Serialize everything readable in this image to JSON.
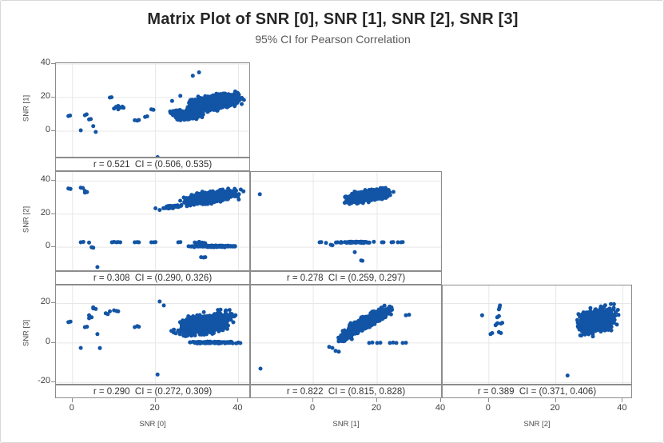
{
  "title": "Matrix Plot of SNR [0], SNR [1], SNR [2], SNR [3]",
  "subtitle": "95% CI for Pearson Correlation",
  "colors": {
    "dot": "#1254a5",
    "grid": "#e7e7e7",
    "panel_border": "#8c8c8c",
    "tick_text": "#404040",
    "axis_title_text": "#4d4d4d",
    "corr_text": "#333333",
    "title_text": "#262626",
    "subtitle_text": "#595959",
    "canvas_border": "#d8d8d8"
  },
  "chart_data": {
    "type": "scatter",
    "subtype": "lower-triangular scatterplot matrix with Pearson correlation strips",
    "variables": [
      "SNR [0]",
      "SNR [1]",
      "SNR [2]",
      "SNR [3]"
    ],
    "grid": true,
    "x_axes": [
      {
        "label": "SNR [0]",
        "ticks": [
          0,
          20,
          40
        ]
      },
      {
        "label": "SNR [1]",
        "ticks": [
          0,
          20,
          40
        ]
      },
      {
        "label": "SNR [2]",
        "ticks": [
          0,
          20,
          40
        ]
      }
    ],
    "y_axes": [
      {
        "label": "SNR [1]",
        "ticks": [
          0,
          20,
          40
        ]
      },
      {
        "label": "SNR [2]",
        "ticks": [
          0,
          20,
          40
        ]
      },
      {
        "label": "SNR [3]",
        "ticks": [
          -20,
          0,
          20
        ]
      }
    ],
    "panels": [
      {
        "row": 0,
        "col": 0,
        "x_var": "SNR [0]",
        "y_var": "SNR [1]",
        "r": 0.521,
        "ci": "(0.506, 0.535)",
        "corr_label": "r = 0.521  CI = (0.506, 0.535)",
        "xlim": [
          -4,
          43
        ],
        "ylim": [
          -16.2,
          40.5
        ],
        "clusters": [
          {
            "cx": 34,
            "cy": 17,
            "rx": 8.5,
            "ry": 7,
            "rho": 0.5,
            "n": 750
          },
          {
            "cx": 28,
            "cy": 9,
            "rx": 4.5,
            "ry": 3.5,
            "rho": 0.3,
            "n": 160
          },
          {
            "cx": 25,
            "cy": 11,
            "rx": 2.5,
            "ry": 2.5,
            "rho": 0.2,
            "n": 60
          }
        ],
        "points": [
          [
            -1,
            9
          ],
          [
            -0.6,
            9.3
          ],
          [
            2,
            0.5
          ],
          [
            3,
            9.5
          ],
          [
            3.4,
            10
          ],
          [
            4,
            7
          ],
          [
            4.4,
            7.2
          ],
          [
            5,
            3
          ],
          [
            5.6,
            -0.5
          ],
          [
            9,
            20
          ],
          [
            9.4,
            20.2
          ],
          [
            10,
            13.5
          ],
          [
            10.5,
            14.5
          ],
          [
            11,
            15
          ],
          [
            11,
            13
          ],
          [
            11.6,
            14
          ],
          [
            12,
            14.6
          ],
          [
            12.3,
            13.9
          ],
          [
            15,
            6.5
          ],
          [
            15.6,
            6.3
          ],
          [
            16,
            6.6
          ],
          [
            17.5,
            8.5
          ],
          [
            18,
            8.8
          ],
          [
            19,
            13
          ],
          [
            19.5,
            12.7
          ],
          [
            20.5,
            -15.5
          ],
          [
            29,
            33
          ],
          [
            30.5,
            35
          ],
          [
            26,
            21
          ],
          [
            24,
            18
          ]
        ]
      },
      {
        "row": 1,
        "col": 0,
        "x_var": "SNR [0]",
        "y_var": "SNR [2]",
        "r": 0.308,
        "ci": "(0.290, 0.326)",
        "corr_label": "r = 0.308  CI = (0.290, 0.326)",
        "xlim": [
          -4,
          43
        ],
        "ylim": [
          -14.9,
          45.5
        ],
        "clusters": [
          {
            "cx": 33,
            "cy": 30,
            "rx": 8.5,
            "ry": 5.5,
            "rho": 0.55,
            "n": 750
          },
          {
            "cx": 24,
            "cy": 24.5,
            "rx": 2.5,
            "ry": 1.5,
            "rho": 0.4,
            "n": 60
          },
          {
            "cx": 34,
            "cy": 0.6,
            "rx": 7.5,
            "ry": 0.7,
            "rho": 0,
            "n": 130
          },
          {
            "cx": 31,
            "cy": 2.2,
            "rx": 2,
            "ry": 1.4,
            "rho": 0,
            "n": 40
          }
        ],
        "points": [
          [
            -1,
            35.5
          ],
          [
            -0.5,
            35.2
          ],
          [
            2,
            36
          ],
          [
            2.5,
            35.8
          ],
          [
            3,
            34
          ],
          [
            3,
            33
          ],
          [
            3.5,
            33.3
          ],
          [
            20,
            23.5
          ],
          [
            21,
            22.5
          ],
          [
            2,
            3
          ],
          [
            2.6,
            3.2
          ],
          [
            4,
            2.8
          ],
          [
            4.6,
            0
          ],
          [
            5,
            -0.3
          ],
          [
            9.5,
            3
          ],
          [
            10,
            3.2
          ],
          [
            10.6,
            3
          ],
          [
            11,
            3.1
          ],
          [
            11.5,
            3
          ],
          [
            15,
            3
          ],
          [
            15.6,
            3.1
          ],
          [
            16,
            3
          ],
          [
            19,
            3
          ],
          [
            19.6,
            3
          ],
          [
            20,
            3.1
          ],
          [
            25.5,
            3
          ],
          [
            26,
            3.1
          ],
          [
            6,
            -12
          ],
          [
            31,
            -6
          ],
          [
            31.6,
            -6.2
          ],
          [
            32,
            -6
          ]
        ]
      },
      {
        "row": 1,
        "col": 1,
        "x_var": "SNR [1]",
        "y_var": "SNR [2]",
        "r": 0.278,
        "ci": "(0.259, 0.297)",
        "corr_label": "r = 0.278  CI = (0.259, 0.297)",
        "xlim": [
          -19.5,
          40.5
        ],
        "ylim": [
          -14.9,
          45.5
        ],
        "clusters": [
          {
            "cx": 17,
            "cy": 31,
            "rx": 8.5,
            "ry": 5,
            "rho": 0.55,
            "n": 800
          },
          {
            "cx": 13,
            "cy": 3,
            "rx": 7,
            "ry": 0.6,
            "rho": 0,
            "n": 60
          }
        ],
        "points": [
          [
            -16.7,
            32
          ],
          [
            5.5,
            1.5
          ],
          [
            6,
            1.2
          ],
          [
            13,
            -3
          ],
          [
            15,
            -8
          ],
          [
            15.4,
            -8.2
          ],
          [
            21.5,
            3
          ],
          [
            22,
            3
          ],
          [
            24.5,
            3
          ],
          [
            25,
            3.1
          ],
          [
            26.5,
            3
          ],
          [
            27.5,
            3
          ],
          [
            28,
            3.1
          ],
          [
            2,
            3
          ],
          [
            2.5,
            3.1
          ],
          [
            4,
            2.6
          ]
        ]
      },
      {
        "row": 2,
        "col": 0,
        "x_var": "SNR [0]",
        "y_var": "SNR [3]",
        "r": 0.29,
        "ci": "(0.272, 0.309)",
        "corr_label": "r = 0.290  CI = (0.272, 0.309)",
        "xlim": [
          -4,
          43
        ],
        "ylim": [
          -21.5,
          29.1
        ],
        "clusters": [
          {
            "cx": 32,
            "cy": 10,
            "rx": 8.5,
            "ry": 7.5,
            "rho": 0.45,
            "n": 800
          },
          {
            "cx": 34,
            "cy": 0.2,
            "rx": 7.5,
            "ry": 0.6,
            "rho": 0,
            "n": 110
          }
        ],
        "points": [
          [
            -1,
            10.5
          ],
          [
            -0.5,
            10.8
          ],
          [
            2,
            -2.5
          ],
          [
            3,
            8
          ],
          [
            3.5,
            8.2
          ],
          [
            4,
            12.5
          ],
          [
            4,
            14
          ],
          [
            4.6,
            13
          ],
          [
            5,
            17.5
          ],
          [
            5,
            18
          ],
          [
            5.6,
            17.2
          ],
          [
            6,
            4.5
          ],
          [
            6.6,
            -2.6
          ],
          [
            8,
            15
          ],
          [
            8.5,
            14.6
          ],
          [
            9,
            16
          ],
          [
            10,
            16.5
          ],
          [
            10.6,
            16.2
          ],
          [
            11,
            16
          ],
          [
            15,
            8
          ],
          [
            15.6,
            8.5
          ],
          [
            16,
            8.2
          ],
          [
            20.5,
            -16
          ],
          [
            21,
            21
          ],
          [
            22,
            19
          ]
        ]
      },
      {
        "row": 2,
        "col": 1,
        "x_var": "SNR [1]",
        "y_var": "SNR [3]",
        "r": 0.822,
        "ci": "(0.815, 0.828)",
        "corr_label": "r = 0.822  CI = (0.815, 0.828)",
        "xlim": [
          -19.5,
          40.5
        ],
        "ylim": [
          -21.5,
          29.1
        ],
        "clusters": [
          {
            "cx": 17,
            "cy": 11,
            "rx": 8.5,
            "ry": 8,
            "rho": 0.85,
            "n": 900
          },
          {
            "cx": 10,
            "cy": 3,
            "rx": 3,
            "ry": 3,
            "rho": 0.5,
            "n": 80
          }
        ],
        "points": [
          [
            -16.5,
            -13
          ],
          [
            17.5,
            0
          ],
          [
            18.5,
            0.2
          ],
          [
            20,
            0
          ],
          [
            21,
            0.1
          ],
          [
            24,
            0
          ],
          [
            25,
            0.2
          ],
          [
            26,
            0
          ],
          [
            28,
            0
          ],
          [
            29,
            0.1
          ],
          [
            29,
            14
          ],
          [
            30,
            14.3
          ],
          [
            7,
            -4
          ],
          [
            8,
            -4.4
          ],
          [
            5,
            -2
          ],
          [
            6,
            -2.5
          ]
        ]
      },
      {
        "row": 2,
        "col": 2,
        "x_var": "SNR [2]",
        "y_var": "SNR [3]",
        "r": 0.389,
        "ci": "(0.371, 0.406)",
        "corr_label": "r = 0.389  CI = (0.371, 0.406)",
        "xlim": [
          -13.8,
          43
        ],
        "ylim": [
          -21.5,
          29.1
        ],
        "clusters": [
          {
            "cx": 32,
            "cy": 11,
            "rx": 7,
            "ry": 8.5,
            "rho": 0.35,
            "n": 900
          }
        ],
        "points": [
          [
            -2,
            14
          ],
          [
            0.5,
            4.5
          ],
          [
            1,
            5
          ],
          [
            2,
            9
          ],
          [
            2.3,
            9.6
          ],
          [
            2.6,
            10
          ],
          [
            2.5,
            13
          ],
          [
            3,
            13.6
          ],
          [
            3,
            17
          ],
          [
            3.2,
            18
          ],
          [
            3.3,
            19
          ],
          [
            3,
            5.5
          ],
          [
            3.6,
            5
          ],
          [
            3.6,
            9.8
          ],
          [
            4,
            10.2
          ],
          [
            23.5,
            -16.5
          ]
        ]
      }
    ]
  }
}
